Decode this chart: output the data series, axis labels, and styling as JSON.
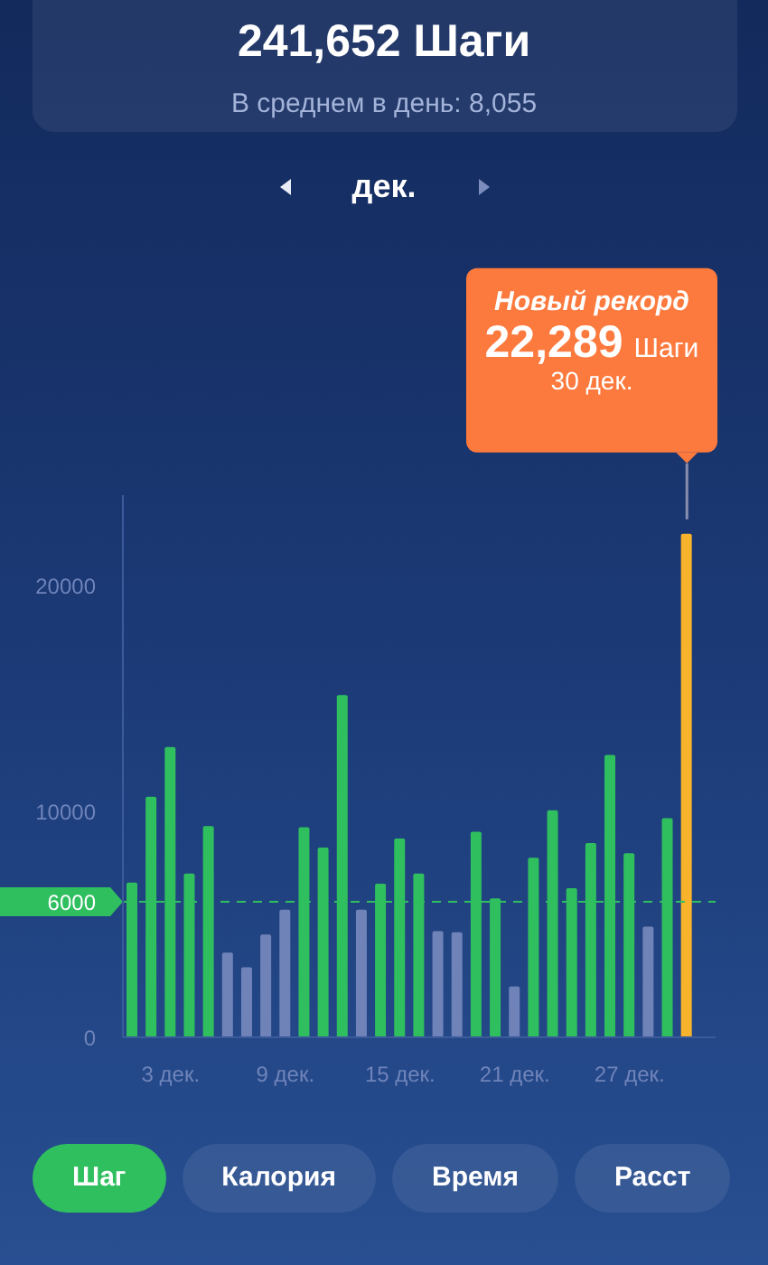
{
  "chart_data": {
    "type": "bar",
    "title": "241,652 Шаги",
    "subtitle": "В среднем в день: 8,055",
    "categories": [
      null,
      null,
      "3 дек.",
      null,
      null,
      null,
      null,
      null,
      "9 дек.",
      null,
      null,
      null,
      null,
      null,
      "15 дек.",
      null,
      null,
      null,
      null,
      null,
      "21 дек.",
      null,
      null,
      null,
      null,
      null,
      "27 дек.",
      null,
      null,
      null,
      null
    ],
    "values": [
      6850,
      10650,
      12850,
      7250,
      9350,
      3750,
      3100,
      4550,
      5650,
      9300,
      8400,
      15150,
      5650,
      6800,
      8800,
      7250,
      4700,
      4650,
      9100,
      6150,
      2250,
      7950,
      10050,
      6600,
      8600,
      12500,
      8150,
      4900,
      9700,
      22289,
      null
    ],
    "colors": [
      "#2fbf5f",
      "#2fbf5f",
      "#2fbf5f",
      "#2fbf5f",
      "#2fbf5f",
      "#7083b8",
      "#7083b8",
      "#7083b8",
      "#7083b8",
      "#2fbf5f",
      "#2fbf5f",
      "#2fbf5f",
      "#7083b8",
      "#2fbf5f",
      "#2fbf5f",
      "#2fbf5f",
      "#7083b8",
      "#7083b8",
      "#2fbf5f",
      "#2fbf5f",
      "#7083b8",
      "#2fbf5f",
      "#2fbf5f",
      "#2fbf5f",
      "#2fbf5f",
      "#2fbf5f",
      "#2fbf5f",
      "#7083b8",
      "#2fbf5f",
      "#f6b32b",
      null
    ],
    "ylim": [
      0,
      24000
    ],
    "yticks": [
      0,
      10000,
      20000
    ],
    "ref_lines": [
      {
        "axis": "y",
        "value": 6000,
        "label": "6000",
        "color": "#2fbf5f",
        "line_style": "dashed"
      }
    ],
    "annotations": [
      "дек.",
      "Шаг",
      "Калория",
      "Время",
      "Расст",
      "Новый рекорд\n22,289 Шаги\n30 дек."
    ]
  }
}
